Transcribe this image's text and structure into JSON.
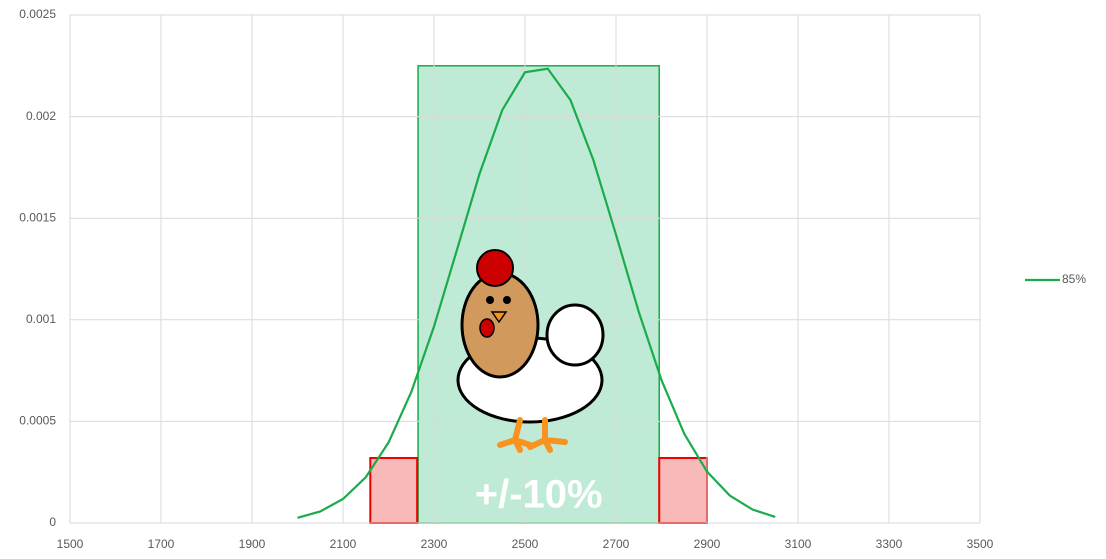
{
  "chart_data": {
    "type": "line",
    "x": [
      2000,
      2050,
      2100,
      2150,
      2200,
      2250,
      2300,
      2350,
      2400,
      2450,
      2500,
      2550,
      2600,
      2650,
      2700,
      2750,
      2800,
      2850,
      2900,
      2950,
      3000,
      3050
    ],
    "series": [
      {
        "name": "85%",
        "color": "#1aab4b",
        "values": [
          2.54e-05,
          5.69e-05,
          0.000118,
          0.000225,
          0.000396,
          0.000644,
          0.000967,
          0.001341,
          0.001718,
          0.002032,
          0.002218,
          0.002236,
          0.002081,
          0.001788,
          0.001419,
          0.001039,
          0.000703,
          0.000439,
          0.000253,
          0.000135,
          6.63e-05,
          3e-05
        ]
      }
    ],
    "xlim": [
      1500,
      3500
    ],
    "xticks": [
      1500,
      1700,
      1900,
      2100,
      2300,
      2500,
      2700,
      2900,
      3100,
      3300,
      3500
    ],
    "ylim": [
      0,
      0.0025
    ],
    "yticks": [
      0,
      0.0005,
      0.001,
      0.0015,
      0.002,
      0.0025
    ],
    "grid": true,
    "legend": "right",
    "shaded_regions": [
      {
        "x": [
          2265,
          2795
        ],
        "y": 0.00225,
        "color": "#bfead5"
      },
      {
        "x": [
          2160,
          2263
        ],
        "y": 0.00032,
        "color": "#f8b9b9"
      },
      {
        "x": [
          2795,
          2900
        ],
        "y": 0.00032,
        "color": "#f8b9b9"
      }
    ],
    "annotation": "+/-10%"
  }
}
